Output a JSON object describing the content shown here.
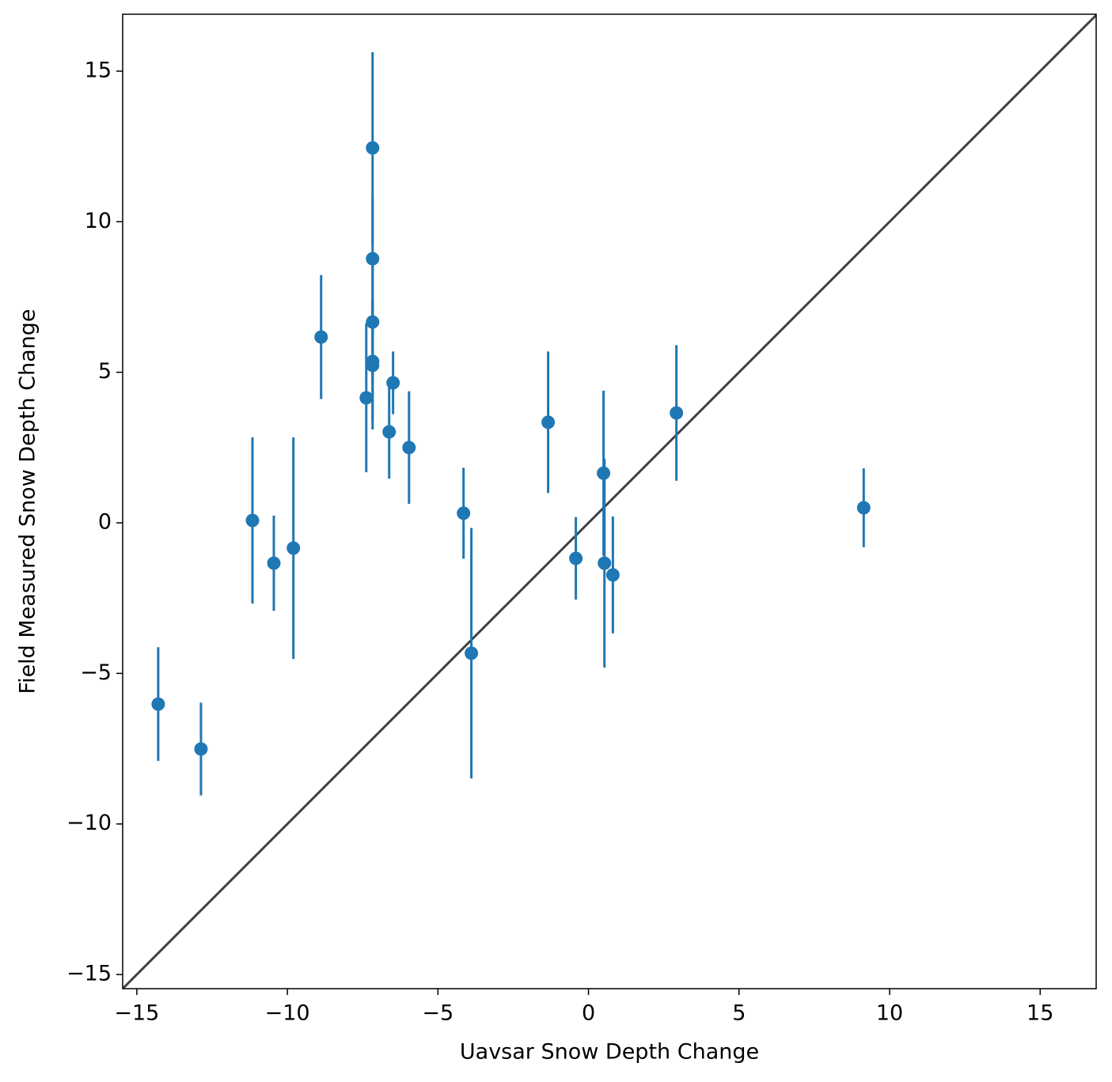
{
  "chart_data": {
    "type": "errorbar",
    "x_label": "Uavsar Snow Depth Change",
    "y_label": "Field Measured Snow Depth Change",
    "x": [
      -14.29,
      -12.87,
      -11.16,
      -10.45,
      -9.8,
      -8.88,
      -7.38,
      -7.17,
      -7.17,
      -7.17,
      -7.17,
      -7.17,
      -6.62,
      -6.49,
      -5.96,
      -4.15,
      -3.89,
      -1.34,
      -0.42,
      0.5,
      0.53,
      0.81,
      2.92,
      9.14
    ],
    "values": [
      -6.02,
      -7.51,
      0.08,
      -1.34,
      -0.84,
      6.17,
      4.15,
      12.45,
      8.77,
      6.67,
      5.36,
      5.23,
      3.02,
      4.65,
      2.5,
      0.32,
      -4.33,
      3.34,
      -1.18,
      1.65,
      -1.34,
      -1.73,
      3.65,
      0.5
    ],
    "errors": [
      1.89,
      1.54,
      2.76,
      1.58,
      3.68,
      2.06,
      2.47,
      3.18,
      2.0,
      2.0,
      2.0,
      2.13,
      1.55,
      1.04,
      1.87,
      1.51,
      4.16,
      2.35,
      1.37,
      2.74,
      3.47,
      1.94,
      2.25,
      1.31
    ],
    "color": "#1f77b4",
    "identity_line": true,
    "identity_color": "#404040",
    "xlim": [
      -15.47,
      16.86
    ],
    "ylim": [
      -15.47,
      16.89
    ],
    "xticks": [
      {
        "value": -15,
        "label": "−15"
      },
      {
        "value": -10,
        "label": "−10"
      },
      {
        "value": -5,
        "label": "−5"
      },
      0,
      5,
      10,
      15
    ],
    "yticks": [
      {
        "value": -15,
        "label": "−15"
      },
      {
        "value": -10,
        "label": "−10"
      },
      {
        "value": -5,
        "label": "−5"
      },
      0,
      5,
      10,
      15
    ],
    "grid": false
  }
}
